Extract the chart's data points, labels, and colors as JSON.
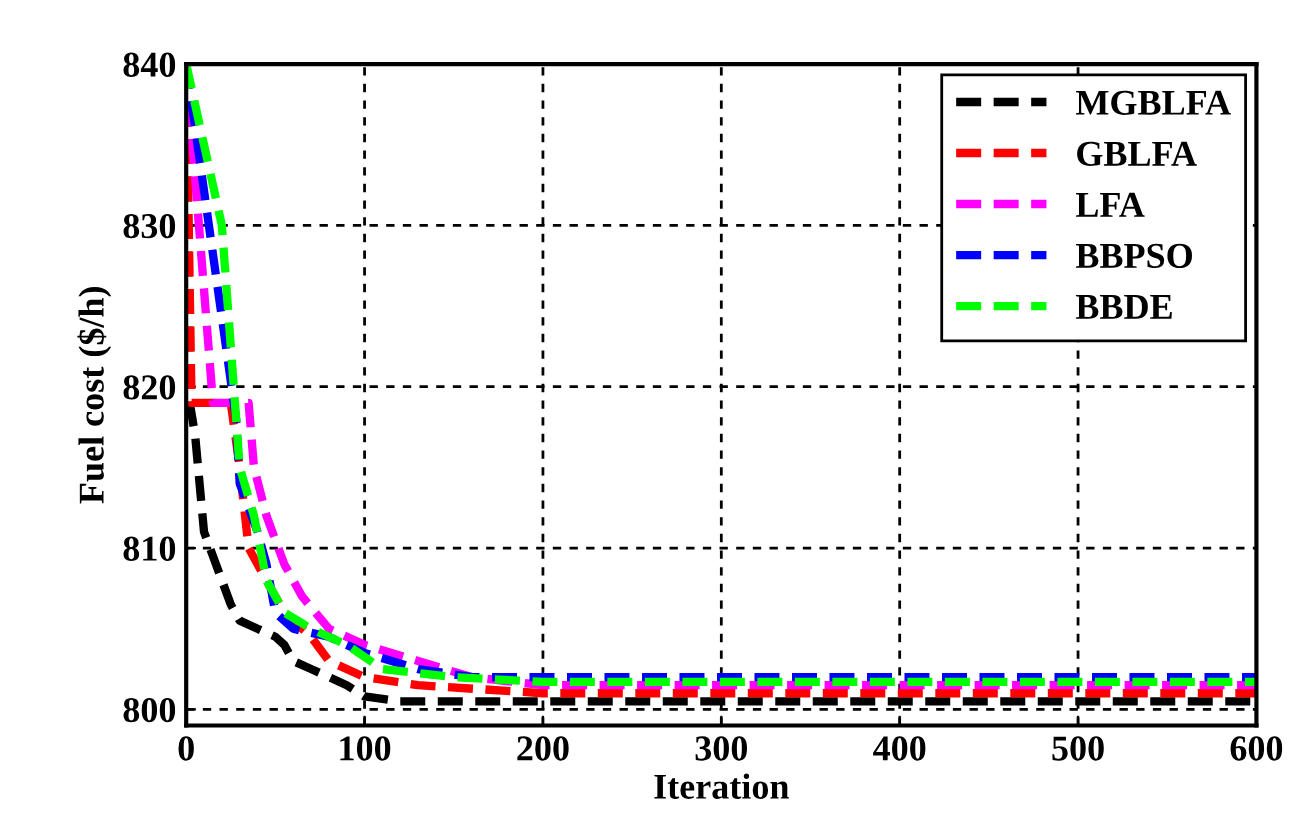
{
  "chart_data": {
    "type": "line",
    "xlabel": "Iteration",
    "ylabel": "Fuel cost ($/h)",
    "xlim": [
      0,
      600
    ],
    "ylim": [
      799,
      840
    ],
    "xticks": [
      0,
      100,
      200,
      300,
      400,
      500,
      600
    ],
    "yticks": [
      800,
      810,
      820,
      830,
      840
    ],
    "grid": true,
    "legend": "top right",
    "line_style": "dashed",
    "marker": "none",
    "series": [
      {
        "name": "MGBLFA",
        "color": "#000000",
        "x": [
          0,
          2,
          5,
          10,
          15,
          20,
          25,
          30,
          40,
          50,
          55,
          60,
          70,
          80,
          90,
          100,
          120,
          200,
          300,
          400,
          500,
          600
        ],
        "values": [
          840,
          819,
          817,
          811,
          809.5,
          808,
          806.5,
          805.5,
          805,
          804.5,
          804,
          803,
          802.5,
          802,
          801.5,
          800.8,
          800.5,
          800.5,
          800.5,
          800.5,
          800.5,
          800.5
        ]
      },
      {
        "name": "GBLFA",
        "color": "#ff0000",
        "x": [
          0,
          3,
          25,
          30,
          35,
          45,
          55,
          70,
          80,
          100,
          130,
          200,
          300,
          400,
          500,
          600
        ],
        "values": [
          840,
          819,
          819,
          815,
          810,
          808,
          806,
          804.5,
          803,
          802,
          801.5,
          801,
          801,
          801,
          801,
          801
        ]
      },
      {
        "name": "LFA",
        "color": "#ff00ff",
        "x": [
          0,
          15,
          35,
          38,
          45,
          55,
          65,
          80,
          100,
          130,
          160,
          200,
          300,
          400,
          500,
          600
        ],
        "values": [
          840,
          819,
          819,
          815,
          812,
          809,
          807,
          805,
          804,
          803,
          802,
          801.5,
          801.5,
          801.5,
          801.5,
          801.5
        ]
      },
      {
        "name": "BBPSO",
        "color": "#0000ff",
        "x": [
          0,
          28,
          30,
          40,
          45,
          50,
          60,
          80,
          100,
          130,
          160,
          200,
          300,
          400,
          500,
          600
        ],
        "values": [
          840,
          818,
          814,
          811,
          809,
          806,
          805,
          804.5,
          803.5,
          802.5,
          802,
          802,
          802,
          802,
          802,
          802
        ]
      },
      {
        "name": "BBDE",
        "color": "#00ff00",
        "x": [
          0,
          20,
          30,
          38,
          45,
          55,
          70,
          90,
          110,
          150,
          200,
          300,
          400,
          500,
          600
        ],
        "values": [
          840,
          830,
          815,
          812,
          808,
          806,
          805,
          804,
          802.5,
          802,
          801.7,
          801.7,
          801.7,
          801.7,
          801.7
        ]
      }
    ]
  }
}
